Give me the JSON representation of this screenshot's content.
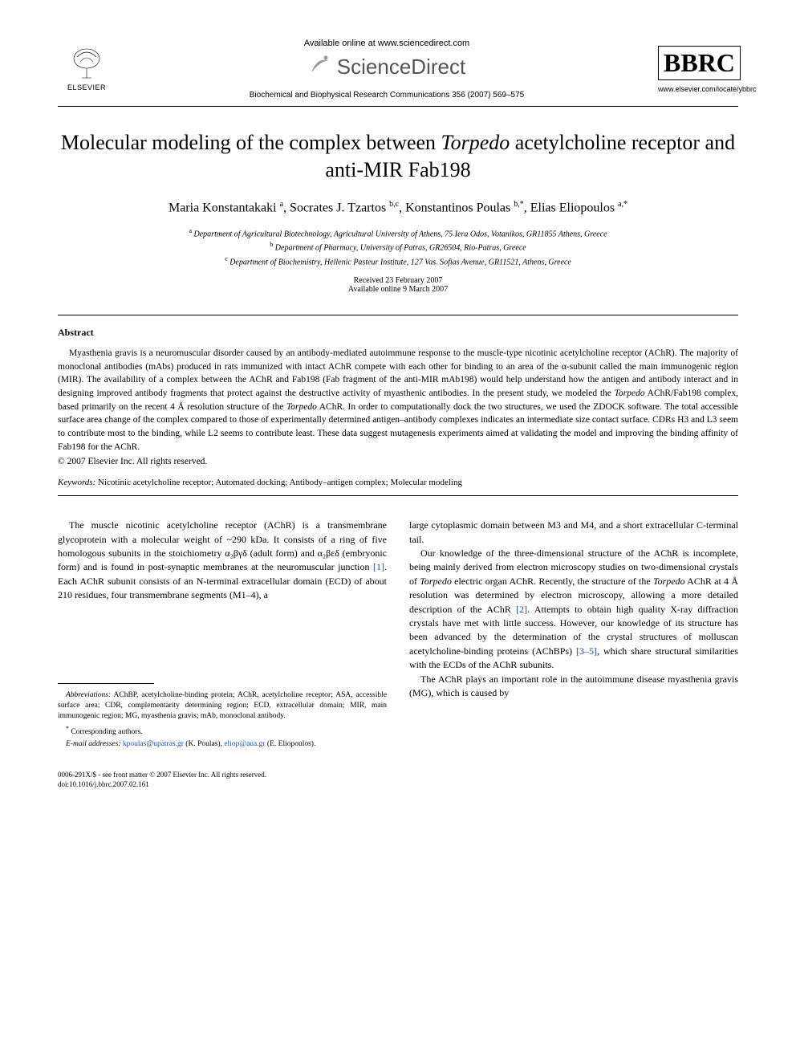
{
  "header": {
    "available_online": "Available online at www.sciencedirect.com",
    "sciencedirect": "ScienceDirect",
    "elsevier": "ELSEVIER",
    "journal_citation": "Biochemical and Biophysical Research Communications 356 (2007) 569–575",
    "bbrc": "BBRC",
    "journal_url": "www.elsevier.com/locate/ybbrc"
  },
  "title_line1": "Molecular modeling of the complex between ",
  "title_ital": "Torpedo",
  "title_line2": " acetylcholine receptor and anti-MIR Fab198",
  "authors_html": "Maria Konstantakaki <sup>a</sup>, Socrates J. Tzartos <sup>b,c</sup>, Konstantinos Poulas <sup>b,*</sup>, Elias Eliopoulos <sup>a,*</sup>",
  "affiliations": {
    "a": "Department of Agricultural Biotechnology, Agricultural University of Athens, 75 Iera Odos, Votanikos, GR11855 Athens, Greece",
    "b": "Department of Pharmacy, University of Patras, GR26504, Rio-Patras, Greece",
    "c": "Department of Biochemistry, Hellenic Pasteur Institute, 127 Vas. Sofias Avenue, GR11521, Athens, Greece"
  },
  "dates": {
    "received": "Received 23 February 2007",
    "available": "Available online 9 March 2007"
  },
  "abstract_heading": "Abstract",
  "abstract_body_1": "Myasthenia gravis is a neuromuscular disorder caused by an antibody-mediated autoimmune response to the muscle-type nicotinic acetylcholine receptor (AChR). The majority of monoclonal antibodies (mAbs) produced in rats immunized with intact AChR compete with each other for binding to an area of the α-subunit called the main immunogenic region (MIR). The availability of a complex between the AChR and Fab198 (Fab fragment of the anti-MIR mAb198) would help understand how the antigen and antibody interact and in designing improved antibody fragments that protect against the destructive activity of myasthenic antibodies. In the present study, we modeled the ",
  "abstract_ital_1": "Torpedo",
  "abstract_body_2": " AChR/Fab198 complex, based primarily on the recent 4 Å resolution structure of the ",
  "abstract_ital_2": "Torpedo",
  "abstract_body_3": " AChR. In order to computationally dock the two structures, we used the ZDOCK software. The total accessible surface area change of the complex compared to those of experimentally determined antigen–antibody complexes indicates an intermediate size contact surface. CDRs H3 and L3 seem to contribute most to the binding, while L2 seems to contribute least. These data suggest mutagenesis experiments aimed at validating the model and improving the binding affinity of Fab198 for the AChR.",
  "copyright": "© 2007 Elsevier Inc. All rights reserved.",
  "keywords_label": "Keywords:",
  "keywords_text": "  Nicotinic acetylcholine receptor; Automated docking; Antibody–antigen complex; Molecular modeling",
  "body": {
    "col1_p1": "The muscle nicotinic acetylcholine receptor (AChR) is a transmembrane glycoprotein with a molecular weight of ~290 kDa. It consists of a ring of five homologous subunits in the stoichiometry α₂βγδ (adult form) and α₂βεδ (embryonic form) and is found in post-synaptic membranes at the neuromuscular junction ",
    "col1_ref1": "[1]",
    "col1_p1b": ". Each AChR subunit consists of an N-terminal extracellular domain (ECD) of about 210 residues, four transmembrane segments (M1–4), a",
    "col2_p1": "large cytoplasmic domain between M3 and M4, and a short extracellular C-terminal tail.",
    "col2_p2a": "Our knowledge of the three-dimensional structure of the AChR is incomplete, being mainly derived from electron microscopy studies on two-dimensional crystals of ",
    "col2_ital1": "Torpedo",
    "col2_p2b": " electric organ AChR. Recently, the structure of the ",
    "col2_ital2": "Torpedo",
    "col2_p2c": " AChR at 4 Å resolution was determined by electron microscopy, allowing a more detailed description of the AChR ",
    "col2_ref2": "[2]",
    "col2_p2d": ". Attempts to obtain high quality X-ray diffraction crystals have met with little success. However, our knowledge of its structure has been advanced by the determination of the crystal structures of molluscan acetylcholine-binding proteins (AChBPs) ",
    "col2_ref3": "[3–5]",
    "col2_p2e": ", which share structural similarities with the ECDs of the AChR subunits.",
    "col2_p3": "The AChR plays an important role in the autoimmune disease myasthenia gravis (MG), which is caused by"
  },
  "footnotes": {
    "abbrev_label": "Abbreviations:",
    "abbrev_text": " AChBP, acetylcholine-binding protein; AChR, acetylcholine receptor; ASA, accessible surface area; CDR, complementarity determining region; ECD, extracellular domain; MIR, main immunogenic region; MG, myasthenia gravis; mAb, monoclonal antibody.",
    "corresponding": "Corresponding authors.",
    "email_label": "E-mail addresses:",
    "email1": "kpoulas@upatras.gr",
    "email1_name": " (K. Poulas), ",
    "email2": "eliop@aua.gr",
    "email2_name": " (E. Eliopoulos)."
  },
  "footer": {
    "issn_line": "0006-291X/$ - see front matter © 2007 Elsevier Inc. All rights reserved.",
    "doi": "doi:10.1016/j.bbrc.2007.02.161"
  },
  "colors": {
    "link": "#1a4fb5",
    "text": "#000000",
    "bg": "#ffffff",
    "sd_gray": "#555555"
  },
  "typography": {
    "title_pt": 26,
    "authors_pt": 16,
    "body_pt": 12,
    "abstract_pt": 11.5,
    "footnote_pt": 9.5
  }
}
